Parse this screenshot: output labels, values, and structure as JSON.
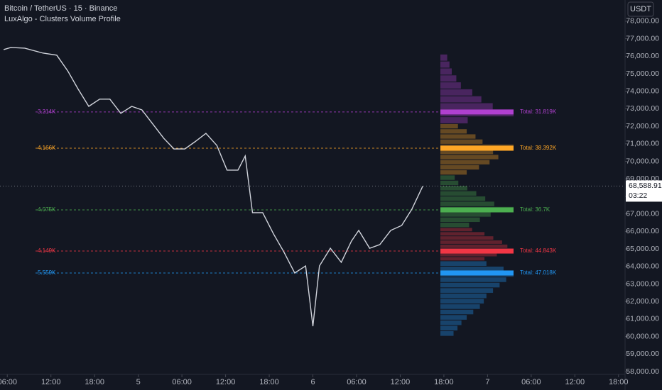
{
  "chart_data": {
    "type": "line",
    "title": "Bitcoin / TetherUS · 15 · Binance",
    "subtitle": "LuxAlgo - Clusters Volume Profile",
    "currency": "USDT",
    "color": "#d1d4dc",
    "x": [
      -0.5,
      0.5,
      2.4,
      4.9,
      6.8,
      8.3,
      9.7,
      11.2,
      12.7,
      14.1,
      15.6,
      17.1,
      18.5,
      20,
      21.5,
      22.9,
      24.4,
      25.8,
      27.3,
      28.8,
      30.2,
      31.7,
      32.7,
      33.7,
      35.1,
      36.6,
      38,
      39.5,
      41,
      42,
      42.9,
      44.4,
      45.9,
      47.3,
      48.3,
      49.8,
      51.2,
      52.7,
      54.2,
      55.6,
      57.1
    ],
    "values": [
      76380,
      76500,
      76460,
      76180,
      76060,
      75170,
      74150,
      73140,
      73550,
      73550,
      72740,
      73140,
      72940,
      72130,
      71320,
      70710,
      70710,
      71120,
      71600,
      70910,
      69500,
      69500,
      70310,
      67070,
      67070,
      65850,
      64840,
      63630,
      64030,
      60590,
      64030,
      65040,
      64240,
      65450,
      66060,
      65040,
      65250,
      66060,
      66340,
      67270,
      68589
    ],
    "current_price": {
      "value": 68588.91,
      "label": "68,588.91"
    },
    "countdown": "03:22",
    "xlim": [
      -1,
      84.9
    ],
    "xticks": [
      {
        "value": 0,
        "label": "06:00"
      },
      {
        "value": 6,
        "label": "12:00"
      },
      {
        "value": 12,
        "label": "18:00"
      },
      {
        "value": 18,
        "label": "5"
      },
      {
        "value": 24,
        "label": "06:00"
      },
      {
        "value": 30,
        "label": "12:00"
      },
      {
        "value": 36,
        "label": "18:00"
      },
      {
        "value": 42,
        "label": "6"
      },
      {
        "value": 48,
        "label": "06:00"
      },
      {
        "value": 54,
        "label": "12:00"
      },
      {
        "value": 60,
        "label": "18:00"
      },
      {
        "value": 66,
        "label": "7"
      },
      {
        "value": 72,
        "label": "06:00"
      },
      {
        "value": 78,
        "label": "12:00"
      },
      {
        "value": 84,
        "label": "18:00"
      }
    ],
    "ylim": [
      57840,
      79210
    ],
    "yticks": [
      {
        "value": 58000,
        "label": "58,000.00"
      },
      {
        "value": 59000,
        "label": "59,000.00"
      },
      {
        "value": 60000,
        "label": "60,000.00"
      },
      {
        "value": 61000,
        "label": "61,000.00"
      },
      {
        "value": 62000,
        "label": "62,000.00"
      },
      {
        "value": 63000,
        "label": "63,000.00"
      },
      {
        "value": 64000,
        "label": "64,000.00"
      },
      {
        "value": 65000,
        "label": "65,000.00"
      },
      {
        "value": 66000,
        "label": "66,000.00"
      },
      {
        "value": 67000,
        "label": "67,000.00"
      },
      {
        "value": 68000,
        "label": "68,000.00"
      },
      {
        "value": 69000,
        "label": "69,000.00"
      },
      {
        "value": 70000,
        "label": "70,000.00"
      },
      {
        "value": 71000,
        "label": "71,000.00"
      },
      {
        "value": 72000,
        "label": "72,000.00"
      },
      {
        "value": 73000,
        "label": "73,000.00"
      },
      {
        "value": 74000,
        "label": "74,000.00"
      },
      {
        "value": 75000,
        "label": "75,000.00"
      },
      {
        "value": 76000,
        "label": "76,000.00"
      },
      {
        "value": 77000,
        "label": "77,000.00"
      },
      {
        "value": 78000,
        "label": "78,000.00"
      }
    ],
    "clusters": [
      {
        "color": "#b040d0",
        "low": 72130,
        "high": 76100,
        "poc": 72820,
        "poc_label": "3.214K",
        "total_label": "Total: 31.819K",
        "rows": [
          1200,
          3214,
          2300,
          1800,
          1400,
          900,
          700,
          500,
          400,
          300
        ]
      },
      {
        "color": "#ffa726",
        "low": 69200,
        "high": 72130,
        "poc": 70750,
        "poc_label": "4.166K",
        "total_label": "Total: 38.392K",
        "rows": [
          1500,
          2200,
          2800,
          3300,
          3000,
          4166,
          2400,
          2000,
          1500,
          1000
        ]
      },
      {
        "color": "#4caf50",
        "low": 66200,
        "high": 69200,
        "poc": 67230,
        "poc_label": "4.075K",
        "total_label": "Total: 36.7K",
        "rows": [
          1600,
          2200,
          2800,
          4075,
          3000,
          2500,
          2000,
          1500,
          1000,
          800
        ]
      },
      {
        "color": "#f23645",
        "low": 64300,
        "high": 66200,
        "poc": 64880,
        "poc_label": "4.149K",
        "total_label": "Total: 44.843K",
        "rows": [
          2500,
          3200,
          4149,
          3800,
          3500,
          3000,
          2500,
          1800
        ]
      },
      {
        "color": "#2196f3",
        "low": 60000,
        "high": 64300,
        "poc": 63630,
        "poc_label": "5.559K",
        "total_label": "Total: 47.018K",
        "rows": [
          1000,
          1300,
          1600,
          2000,
          2500,
          3000,
          3300,
          3500,
          4000,
          4500,
          5000,
          5559,
          4800,
          3500
        ]
      }
    ]
  }
}
